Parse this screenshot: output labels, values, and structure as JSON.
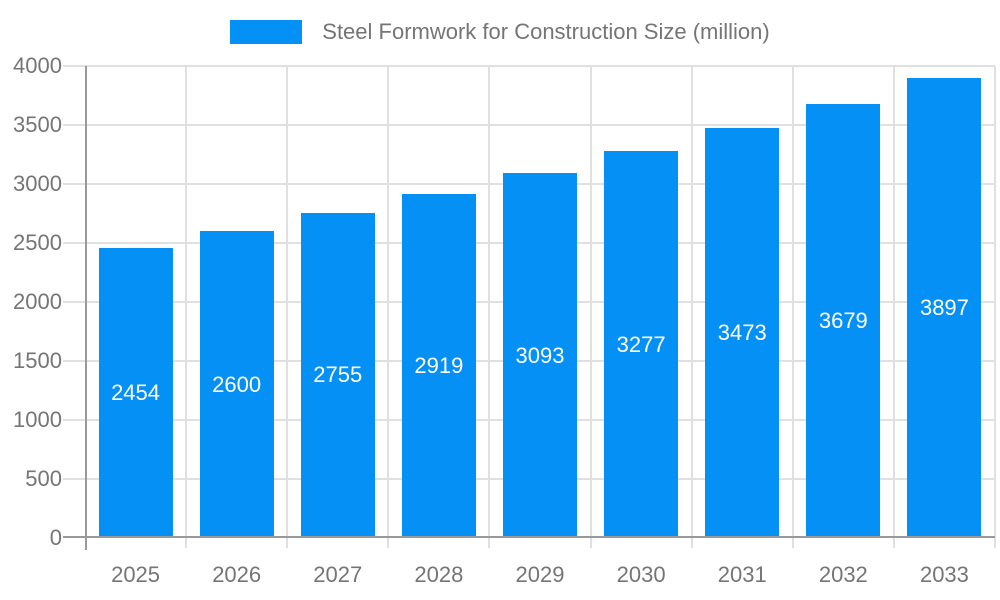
{
  "chart_data": {
    "type": "bar",
    "title": "",
    "legend": "Steel Formwork for Construction Size (million)",
    "categories": [
      "2025",
      "2026",
      "2027",
      "2028",
      "2029",
      "2030",
      "2031",
      "2032",
      "2033"
    ],
    "values": [
      2454,
      2600,
      2755,
      2919,
      3093,
      3277,
      3473,
      3679,
      3897
    ],
    "xlabel": "",
    "ylabel": "",
    "ylim": [
      0,
      4000
    ],
    "yticks": [
      0,
      500,
      1000,
      1500,
      2000,
      2500,
      3000,
      3500,
      4000
    ],
    "grid": true,
    "legend_position": "top",
    "bar_labels_shown": true,
    "colors": {
      "bar": "#0590f5",
      "bar_label": "#ffffff",
      "axis_text": "#757575",
      "legend_text": "#757575",
      "axis_line": "#999999",
      "gridline": "#e0e0e0",
      "background": "#ffffff"
    }
  }
}
